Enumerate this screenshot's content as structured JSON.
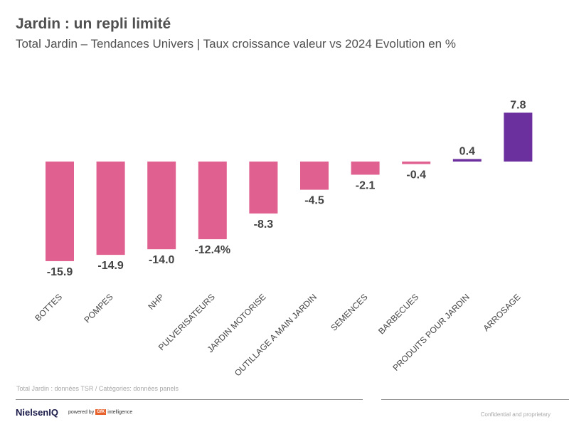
{
  "header": {
    "title": "Jardin : un repli limité",
    "subtitle": "Total Jardin – Tendances Univers | Taux croissance valeur vs 2024 Evolution en %"
  },
  "chart_data": {
    "type": "bar",
    "title": "Jardin : un repli limité",
    "categories": [
      "BOTTES",
      "POMPES",
      "NHP",
      "PULVERISATEURS",
      "JARDIN MOTORISE",
      "OUTILLAGE A MAIN JARDIN",
      "SEMENCES",
      "BARBECUES",
      "PRODUITS POUR JARDIN",
      "ARROSAGE"
    ],
    "values": [
      -15.9,
      -14.9,
      -14.0,
      -12.4,
      -8.3,
      -4.5,
      -2.1,
      -0.4,
      0.4,
      7.8
    ],
    "data_labels": [
      "-15.9",
      "-14.9",
      "-14.0",
      "-12.4%",
      "-8.3",
      "-4.5",
      "-2.1",
      "-0.4",
      "0.4",
      "7.8"
    ],
    "xlabel": "",
    "ylabel": "",
    "grid": false,
    "colors": {
      "negative": "#E0608F",
      "positive": "#6B2F9E"
    }
  },
  "footer": {
    "source": "Total Jardin : données TSR  /  Catégories: données panels",
    "logo": "NielsenIQ",
    "powered_by": "powered by",
    "gfk": "GfK",
    "intelligence": "intelligence",
    "confidential": "Confidential and proprietary"
  }
}
